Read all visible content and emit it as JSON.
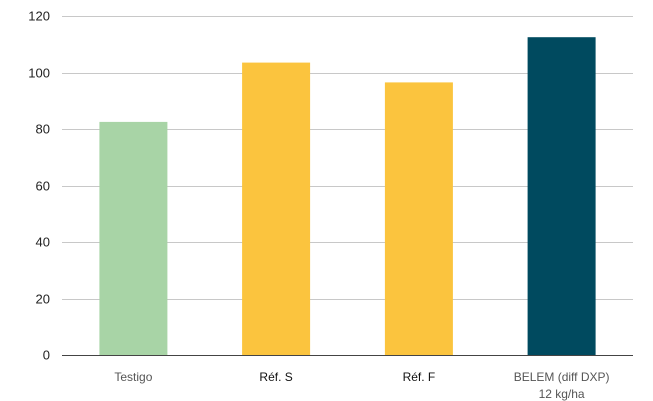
{
  "chart_data": {
    "type": "bar",
    "categories": [
      [
        "Testigo"
      ],
      [
        "Réf. S"
      ],
      [
        "Réf. F"
      ],
      [
        "BELEM (diff DXP)",
        "12 kg/ha"
      ]
    ],
    "values": [
      82.5,
      103.5,
      96.5,
      112.5
    ],
    "bar_colors": [
      "#a8d4a6",
      "#fbc43e",
      "#fbc43e",
      "#004a5f"
    ],
    "label_colors": [
      "#555555",
      "#111111",
      "#111111",
      "#555555"
    ],
    "yticks": [
      0,
      20,
      40,
      60,
      80,
      100,
      120
    ],
    "ylim": [
      0,
      120
    ],
    "grid": true,
    "title": "",
    "xlabel": "",
    "ylabel": ""
  }
}
